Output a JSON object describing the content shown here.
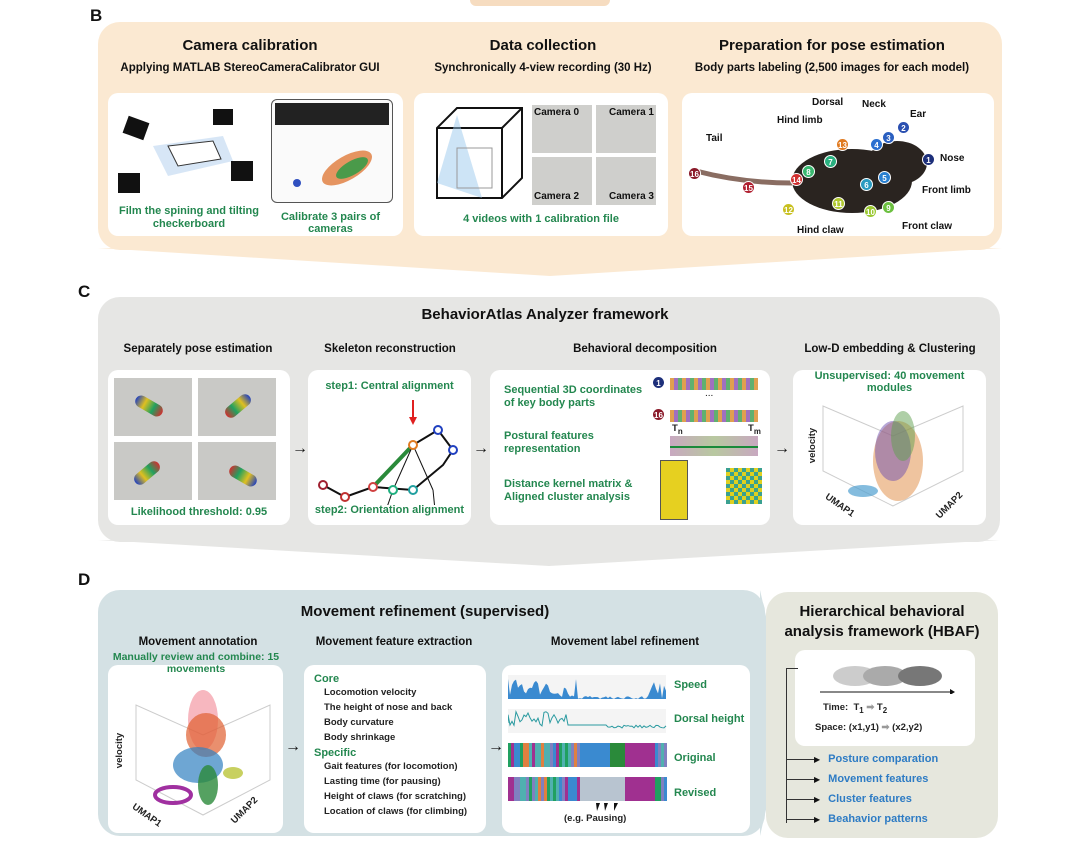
{
  "panel_b": {
    "letter": "B",
    "columns": [
      {
        "title": "Camera calibration",
        "subtitle": "Applying MATLAB StereoCameraCalibrator GUI",
        "captions": [
          "Film the spining and tilting checkerboard",
          "Calibrate 3 pairs of cameras"
        ]
      },
      {
        "title": "Data collection",
        "subtitle": "Synchronically 4-view recording (30 Hz)",
        "cameras": [
          "Camera 0",
          "Camera 1",
          "Camera 2",
          "Camera 3"
        ],
        "caption": "4 videos with 1 calibration file"
      },
      {
        "title": "Preparation for pose estimation",
        "subtitle": "Body parts labeling (2,500 images for each model)",
        "parts": [
          "Tail",
          "Hind limb",
          "Dorsal",
          "Neck",
          "Ear",
          "Nose",
          "Front limb",
          "Front claw",
          "Hind claw"
        ],
        "points": [
          "1",
          "2",
          "3",
          "4",
          "5",
          "6",
          "7",
          "8",
          "9",
          "10",
          "11",
          "12",
          "13",
          "14",
          "15",
          "16"
        ]
      }
    ]
  },
  "panel_c": {
    "letter": "C",
    "title": "BehaviorAtlas Analyzer framework",
    "columns": [
      {
        "title": "Separately pose estimation",
        "caption": "Likelihood threshold: 0.95"
      },
      {
        "title": "Skeleton reconstruction",
        "step1": "step1: Central alignment",
        "step2": "step2: Orientation alignment"
      },
      {
        "title": "Behavioral decomposition",
        "items": [
          "Sequential 3D coordinates of key body parts",
          "Postural features representation",
          "Distance kernel matrix & Aligned cluster analysis"
        ],
        "t_start": "T",
        "t_start_sub": "n",
        "t_end": "T",
        "t_end_sub": "m",
        "ellipsis": "...",
        "node_first": "1",
        "node_last": "16"
      },
      {
        "title": "Low-D embedding & Clustering",
        "caption": "Unsupervised: 40 movement modules",
        "axes": [
          "velocity",
          "UMAP1",
          "UMAP2"
        ]
      }
    ]
  },
  "panel_d": {
    "letter": "D",
    "title": "Movement refinement (supervised)",
    "annotation": {
      "title": "Movement annotation",
      "caption": "Manually review and combine: 15 movements",
      "axes": [
        "velocity",
        "UMAP1",
        "UMAP2"
      ]
    },
    "features": {
      "title": "Movement feature extraction",
      "core_label": "Core",
      "core": [
        "Locomotion velocity",
        "The height of nose and back",
        "Body curvature",
        "Body shrinkage"
      ],
      "specific_label": "Specific",
      "specific": [
        "Gait features (for locomotion)",
        "Lasting time (for pausing)",
        "Height of claws (for scratching)",
        "Location of claws (for climbing)"
      ]
    },
    "refinement": {
      "title": "Movement label refinement",
      "tracks": [
        "Speed",
        "Dorsal height",
        "Original",
        "Revised"
      ],
      "note": "(e.g. Pausing)"
    },
    "hbaf": {
      "title": "Hierarchical behavioral analysis framework (HBAF)",
      "time_label": "Time:",
      "t1": "T",
      "t1_sub": "1",
      "t2": "T",
      "t2_sub": "2",
      "space_label": "Space:",
      "space1": "(x1,y1)",
      "space2": "(x2,y2)",
      "outputs": [
        "Posture comparation",
        "Movement features",
        "Cluster features",
        "Beahavior patterns"
      ]
    }
  },
  "colors": {
    "panel_b_bg": "#fbe9d2",
    "panel_c_bg": "#e6e6e4",
    "panel_d_bg": "#d4e1e4",
    "hbaf_bg": "#e6e7dd",
    "green_text": "#23874f",
    "blue_text": "#2d7bc4"
  }
}
